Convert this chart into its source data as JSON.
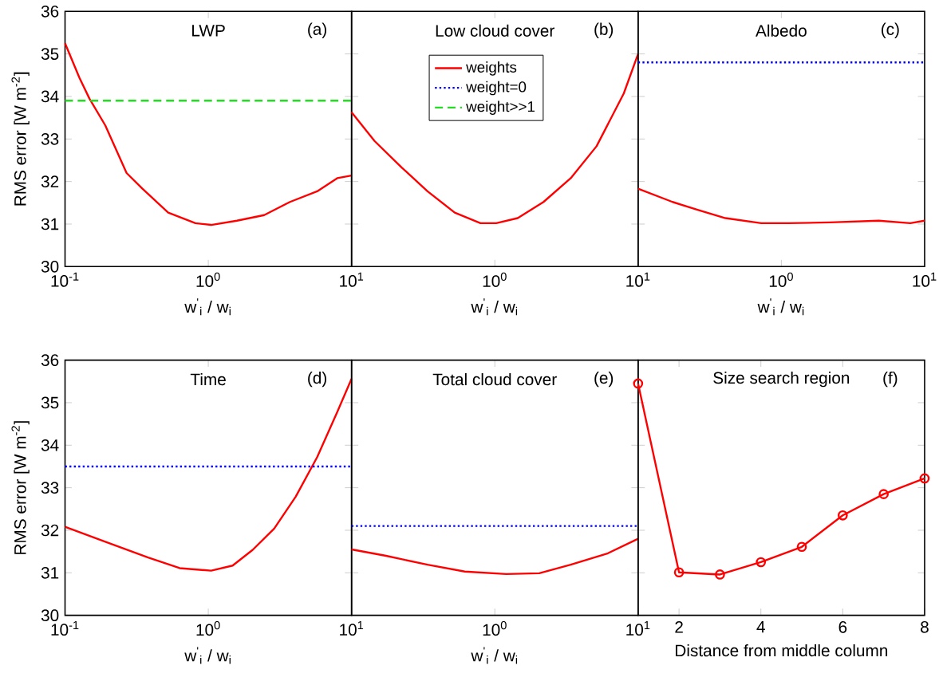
{
  "chart_data": [
    {
      "type": "line",
      "title": "LWP",
      "annotations": [
        "(a)"
      ],
      "xlabel": "w$^{'}$$_{i}$ / w$_{i}$",
      "ylabel": "RMS error [W m$^{-2}$]",
      "log": "x",
      "xlim": [
        0.1,
        10
      ],
      "xticks": [
        {
          "value": 0.1,
          "label": "10$^{-1}$"
        },
        {
          "value": 1,
          "label": "10$^{0}$"
        },
        {
          "value": 10,
          "label": "10$^{1}$"
        }
      ],
      "ylim": [
        30,
        36
      ],
      "yticks": [
        30,
        31,
        32,
        33,
        34,
        35,
        36
      ],
      "series": [
        {
          "color": "#ff0000",
          "line_style": "solid",
          "x": [
            0.1,
            0.126,
            0.148,
            0.191,
            0.269,
            0.347,
            0.525,
            0.813,
            1.047,
            1.585,
            2.455,
            3.715,
            5.754,
            7.943,
            10
          ],
          "values": [
            35.25,
            34.44,
            33.95,
            33.32,
            32.2,
            31.83,
            31.27,
            31.02,
            30.98,
            31.08,
            31.21,
            31.52,
            31.77,
            32.08,
            32.14
          ]
        },
        {
          "color": "#22dd22",
          "line_style": "dashed",
          "x": [
            0.1,
            10
          ],
          "values": [
            33.9,
            33.9
          ]
        }
      ]
    },
    {
      "type": "line",
      "title": "Low cloud cover",
      "annotations": [
        "(b)"
      ],
      "xlabel": "w$^{'}$$_{i}$ / w$_{i}$",
      "log": "x",
      "xlim": [
        0.1,
        10
      ],
      "xticks": [
        {
          "value": 0.1,
          "label": null
        },
        {
          "value": 1,
          "label": "10$^{0}$"
        },
        {
          "value": 10,
          "label": "10$^{1}$"
        }
      ],
      "ylim": [
        30,
        36
      ],
      "yticks": [
        30,
        31,
        32,
        33,
        34,
        35,
        36
      ],
      "tick_labels": "x",
      "legend": "top",
      "series": [
        {
          "name": "weights",
          "color": "#ff0000",
          "line_style": "solid",
          "x": [
            0.1,
            0.145,
            0.224,
            0.339,
            0.525,
            0.794,
            1.023,
            1.445,
            2.188,
            3.388,
            5.129,
            7.943,
            10
          ],
          "values": [
            33.63,
            32.95,
            32.33,
            31.77,
            31.27,
            31.02,
            31.02,
            31.14,
            31.52,
            32.08,
            32.83,
            34.07,
            35.0
          ]
        },
        {
          "name": "weight=0",
          "color": "#0000ff",
          "line_style": "dotted",
          "values": [
            null
          ]
        },
        {
          "name": "weight>>1",
          "color": "#22dd22",
          "line_style": "dashed",
          "values": [
            null
          ]
        }
      ]
    },
    {
      "type": "line",
      "title": "Albedo",
      "annotations": [
        "(c)"
      ],
      "xlabel": "w$^{'}$$_{i}$ / w$_{i}$",
      "log": "x",
      "xlim": [
        0.1,
        10
      ],
      "xticks": [
        {
          "value": 0.1,
          "label": null
        },
        {
          "value": 1,
          "label": "10$^{0}$"
        },
        {
          "value": 10,
          "label": "10$^{1}$"
        }
      ],
      "ylim": [
        30,
        36
      ],
      "yticks": [
        30,
        31,
        32,
        33,
        34,
        35,
        36
      ],
      "tick_labels": "x",
      "series": [
        {
          "color": "#ff0000",
          "line_style": "solid",
          "x": [
            0.1,
            0.174,
            0.263,
            0.407,
            0.724,
            1.122,
            2.188,
            4.786,
            7.943,
            10
          ],
          "values": [
            31.83,
            31.52,
            31.33,
            31.14,
            31.02,
            31.02,
            31.04,
            31.08,
            31.02,
            31.08
          ]
        },
        {
          "color": "#0000ff",
          "line_style": "dotted",
          "x": [
            0.1,
            10
          ],
          "values": [
            34.8,
            34.8
          ]
        }
      ]
    },
    {
      "type": "line",
      "title": "Time",
      "annotations": [
        "(d)"
      ],
      "xlabel": "w$^{'}$$_{i}$ / w$_{i}$",
      "ylabel": "RMS error [W m$^{-2}$]",
      "log": "x",
      "xlim": [
        0.1,
        10
      ],
      "xticks": [
        {
          "value": 0.1,
          "label": "10$^{-1}$"
        },
        {
          "value": 1,
          "label": "10$^{0}$"
        },
        {
          "value": 10,
          "label": "10$^{1}$"
        }
      ],
      "ylim": [
        30,
        36
      ],
      "yticks": [
        30,
        31,
        32,
        33,
        34,
        35,
        36
      ],
      "series": [
        {
          "color": "#ff0000",
          "line_style": "solid",
          "x": [
            0.1,
            0.191,
            0.38,
            0.631,
            1.047,
            1.479,
            2.042,
            2.884,
            4.074,
            5.754,
            7.943,
            10
          ],
          "values": [
            32.08,
            31.73,
            31.36,
            31.11,
            31.05,
            31.17,
            31.54,
            32.04,
            32.79,
            33.72,
            34.78,
            35.56
          ]
        },
        {
          "color": "#0000ff",
          "line_style": "dotted",
          "x": [
            0.1,
            10
          ],
          "values": [
            33.5,
            33.5
          ]
        }
      ]
    },
    {
      "type": "line",
      "title": "Total cloud cover",
      "annotations": [
        "(e)"
      ],
      "xlabel": "w$^{'}$$_{i}$ / w$_{i}$",
      "log": "x",
      "xlim": [
        0.1,
        10
      ],
      "xticks": [
        {
          "value": 0.1,
          "label": null
        },
        {
          "value": 1,
          "label": "10$^{0}$"
        },
        {
          "value": 10,
          "label": "10$^{1}$"
        }
      ],
      "ylim": [
        30,
        36
      ],
      "yticks": [
        30,
        31,
        32,
        33,
        34,
        35,
        36
      ],
      "tick_labels": "x",
      "series": [
        {
          "color": "#ff0000",
          "line_style": "solid",
          "x": [
            0.1,
            0.174,
            0.339,
            0.617,
            1.202,
            2.042,
            3.388,
            6.166,
            10
          ],
          "values": [
            31.55,
            31.4,
            31.19,
            31.03,
            30.97,
            30.99,
            31.19,
            31.46,
            31.8
          ]
        },
        {
          "color": "#0000ff",
          "line_style": "dotted",
          "x": [
            0.1,
            10
          ],
          "values": [
            32.1,
            32.1
          ]
        }
      ]
    },
    {
      "type": "line",
      "title": "Size search region",
      "annotations": [
        "(f)"
      ],
      "xlabel": "Distance from middle column",
      "xlim": [
        1,
        8
      ],
      "xticks": [
        2,
        4,
        6,
        8
      ],
      "ylim": [
        30,
        36
      ],
      "yticks": [
        30,
        31,
        32,
        33,
        34,
        35,
        36
      ],
      "tick_labels": "x",
      "marker": "circle",
      "series": [
        {
          "color": "#ff0000",
          "line_style": "solid",
          "x": [
            1,
            2,
            3,
            4,
            5,
            6,
            7,
            8
          ],
          "values": [
            35.45,
            31.01,
            30.96,
            31.25,
            31.61,
            32.35,
            32.85,
            33.22
          ]
        }
      ]
    }
  ]
}
